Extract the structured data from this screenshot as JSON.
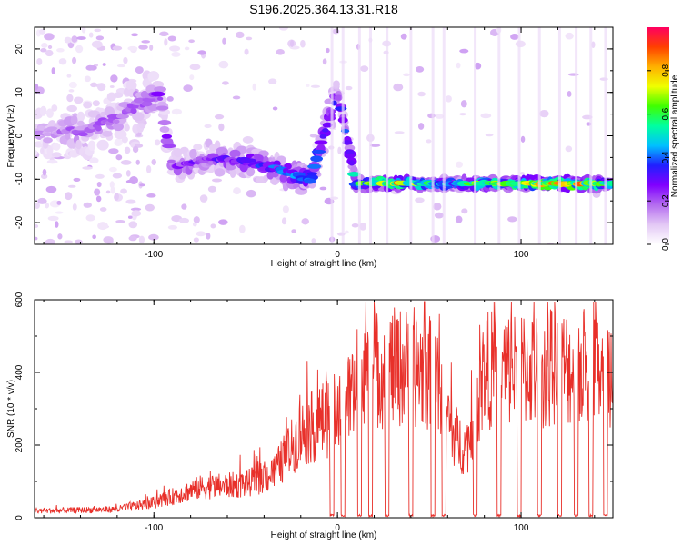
{
  "title": "S196.2025.364.13.31.R18",
  "chart_data": [
    {
      "type": "heatmap",
      "xlabel": "Height of straight line (km)",
      "ylabel": "Frequency (Hz)",
      "xlim": [
        -165,
        150
      ],
      "ylim": [
        -25,
        25
      ],
      "xticks": [
        -100,
        0,
        100
      ],
      "yticks": [
        -20,
        -10,
        0,
        10,
        20
      ],
      "colorbar": {
        "label": "Normalized spectral amplitude",
        "ticks": [
          0.0,
          0.2,
          0.4,
          0.6,
          0.8
        ],
        "range": [
          0,
          1
        ],
        "colors": [
          "#ffffff",
          "#e3c8f5",
          "#b46cf0",
          "#8000ff",
          "#2020ff",
          "#00c0ff",
          "#00ffa0",
          "#40ff00",
          "#f0ff00",
          "#ffb000",
          "#ff4000",
          "#ff0060"
        ]
      },
      "ridge": [
        {
          "x": -165,
          "f": 1,
          "amp": 0.15
        },
        {
          "x": -140,
          "f": 1,
          "amp": 0.2
        },
        {
          "x": -120,
          "f": 4,
          "amp": 0.2
        },
        {
          "x": -97,
          "f": 10,
          "amp": 0.25
        },
        {
          "x": -90,
          "f": -7,
          "amp": 0.25
        },
        {
          "x": -70,
          "f": -5,
          "amp": 0.3
        },
        {
          "x": -50,
          "f": -6,
          "amp": 0.35
        },
        {
          "x": -30,
          "f": -8,
          "amp": 0.4
        },
        {
          "x": -15,
          "f": -10,
          "amp": 0.5
        },
        {
          "x": 0,
          "f": 10,
          "amp": 0.3
        },
        {
          "x": 10,
          "f": -11,
          "amp": 0.55
        },
        {
          "x": 30,
          "f": -11,
          "amp": 0.85
        },
        {
          "x": 60,
          "f": -11,
          "amp": 0.5
        },
        {
          "x": 100,
          "f": -11,
          "amp": 0.8
        },
        {
          "x": 130,
          "f": -11,
          "amp": 0.85
        },
        {
          "x": 148,
          "f": -11,
          "amp": 0.6
        }
      ]
    },
    {
      "type": "line",
      "xlabel": "Height of straight line (km)",
      "ylabel": "SNR (10 * v/v)",
      "xlim": [
        -165,
        150
      ],
      "ylim": [
        0,
        600
      ],
      "xticks": [
        -100,
        0,
        100
      ],
      "yticks": [
        0,
        200,
        400,
        600
      ],
      "color": "#e8302a",
      "envelope": [
        {
          "x": -165,
          "level": 20
        },
        {
          "x": -120,
          "level": 25
        },
        {
          "x": -100,
          "level": 45
        },
        {
          "x": -75,
          "level": 90
        },
        {
          "x": -50,
          "level": 100
        },
        {
          "x": -35,
          "level": 130
        },
        {
          "x": -20,
          "level": 250
        },
        {
          "x": -10,
          "level": 280
        },
        {
          "x": 0,
          "level": 320
        },
        {
          "x": 10,
          "level": 380
        },
        {
          "x": 20,
          "level": 440
        },
        {
          "x": 40,
          "level": 450
        },
        {
          "x": 55,
          "level": 420
        },
        {
          "x": 62,
          "level": 260
        },
        {
          "x": 70,
          "level": 200
        },
        {
          "x": 80,
          "level": 440
        },
        {
          "x": 150,
          "level": 450
        }
      ],
      "dropouts_x": [
        -3,
        3,
        12,
        18,
        27,
        40,
        52,
        58,
        75,
        88,
        99,
        110,
        121,
        130,
        138,
        146
      ]
    }
  ]
}
